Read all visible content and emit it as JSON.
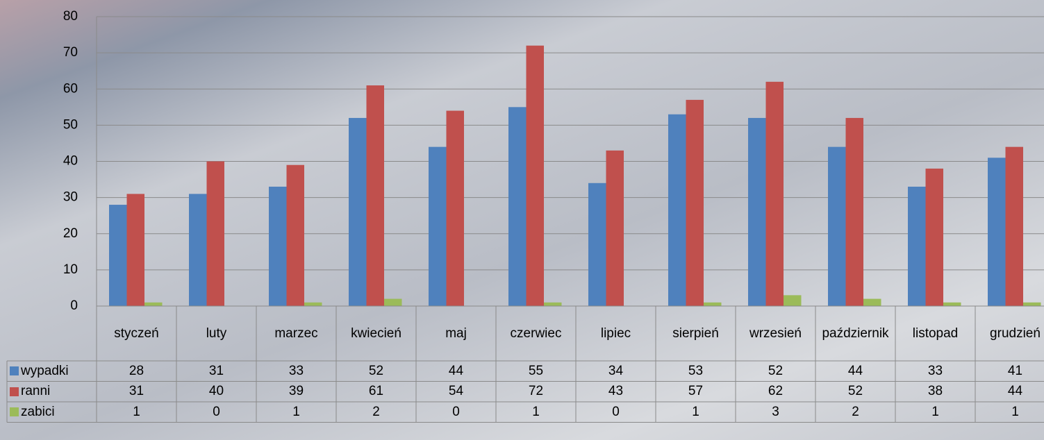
{
  "chart_data": {
    "type": "bar",
    "categories": [
      "styczeń",
      "luty",
      "marzec",
      "kwiecień",
      "maj",
      "czerwiec",
      "lipiec",
      "sierpień",
      "wrzesień",
      "październik",
      "listopad",
      "grudzień"
    ],
    "series": [
      {
        "name": "wypadki",
        "color": "#4f81bd",
        "values": [
          28,
          31,
          33,
          52,
          44,
          55,
          34,
          53,
          52,
          44,
          33,
          41
        ]
      },
      {
        "name": "ranni",
        "color": "#c0504d",
        "values": [
          31,
          40,
          39,
          61,
          54,
          72,
          43,
          57,
          62,
          52,
          38,
          44
        ]
      },
      {
        "name": "zabici",
        "color": "#9bbb59",
        "values": [
          1,
          0,
          1,
          2,
          0,
          1,
          0,
          1,
          3,
          2,
          1,
          1
        ]
      }
    ],
    "ylim": [
      0,
      80
    ],
    "yticks": [
      0,
      10,
      20,
      30,
      40,
      50,
      60,
      70,
      80
    ],
    "grid": true
  }
}
